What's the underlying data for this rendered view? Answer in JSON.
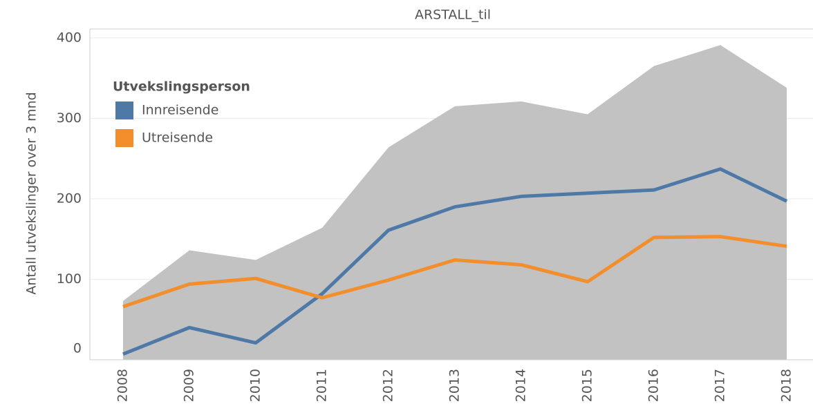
{
  "chart_data": {
    "type": "line",
    "title": "ARSTALL_til",
    "y_label": "Antall utvekslinger over 3 mnd",
    "legend_title": "Utvekslingsperson",
    "categories": [
      "2008",
      "2009",
      "2010",
      "2011",
      "2012",
      "2013",
      "2014",
      "2015",
      "2016",
      "2017",
      "2018"
    ],
    "area": {
      "color": "#c2c2c2",
      "values": [
        73,
        136,
        124,
        164,
        264,
        315,
        321,
        305,
        365,
        391,
        338
      ]
    },
    "series": [
      {
        "name": "Innreisende",
        "color": "#4e79a7",
        "values": [
          7,
          40,
          21,
          82,
          161,
          190,
          203,
          207,
          211,
          237,
          197
        ]
      },
      {
        "name": "Utreisende",
        "color": "#f28e2b",
        "values": [
          66,
          94,
          101,
          77,
          99,
          124,
          118,
          97,
          152,
          153,
          141
        ]
      }
    ],
    "ylim": [
      0,
      411
    ],
    "yticks": [
      0,
      100,
      200,
      300,
      400
    ],
    "grid": true,
    "legend": "upper left"
  }
}
